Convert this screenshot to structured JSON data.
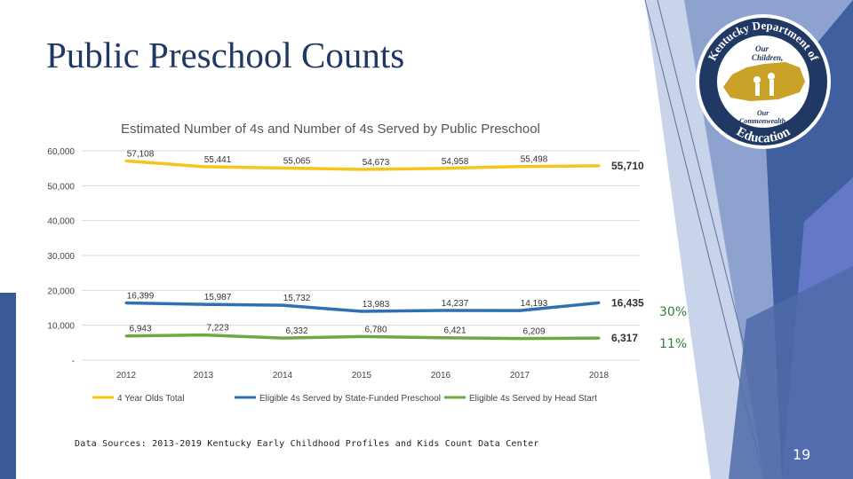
{
  "slide": {
    "title": "Public Preschool Counts",
    "source": "Data Sources: 2013-2019 Kentucky Early Childhood Profiles and Kids Count Data Center",
    "page_number": "19"
  },
  "logo": {
    "text_top": "Kentucky Department of",
    "text_mid1": "Our",
    "text_mid2": "Children,",
    "text_mid3": "Our",
    "text_mid4": "Commonwealth",
    "text_bottom": "Education"
  },
  "colors": {
    "title": "#1f3864",
    "total": "#f5c518",
    "state": "#2f6fb3",
    "headstart": "#6aaa43",
    "percent_text": "#2e7d32",
    "decor_dark": "#3a5a97",
    "decor_light": "#aebfe0"
  },
  "chart_data": {
    "type": "line",
    "title": "Estimated Number of 4s and Number of 4s Served by Public Preschool",
    "categories": [
      "2012",
      "2013",
      "2014",
      "2015",
      "2016",
      "2017",
      "2018"
    ],
    "yticks": [
      "60,000",
      "50,000",
      "40,000",
      "30,000",
      "20,000",
      "10,000",
      "-"
    ],
    "ylim": [
      0,
      60000
    ],
    "grid": true,
    "legend_position": "bottom",
    "series": [
      {
        "name": "4 Year Olds Total",
        "values": [
          57108,
          55441,
          55065,
          54673,
          54958,
          55498,
          55710
        ],
        "labels": [
          "57,108",
          "55,441",
          "55,065",
          "54,673",
          "54,958",
          "55,498",
          "55,710"
        ],
        "end_percent": ""
      },
      {
        "name": "Eligible 4s Served by State-Funded Preschool",
        "values": [
          16399,
          15987,
          15732,
          13983,
          14237,
          14193,
          16435
        ],
        "labels": [
          "16,399",
          "15,987",
          "15,732",
          "13,983",
          "14,237",
          "14,193",
          "16,435"
        ],
        "end_percent": "30%"
      },
      {
        "name": "Eligible 4s Served by Head Start",
        "values": [
          6943,
          7223,
          6332,
          6780,
          6421,
          6209,
          6317
        ],
        "labels": [
          "6,943",
          "7,223",
          "6,332",
          "6,780",
          "6,421",
          "6,209",
          "6,317"
        ],
        "end_percent": "11%"
      }
    ]
  }
}
